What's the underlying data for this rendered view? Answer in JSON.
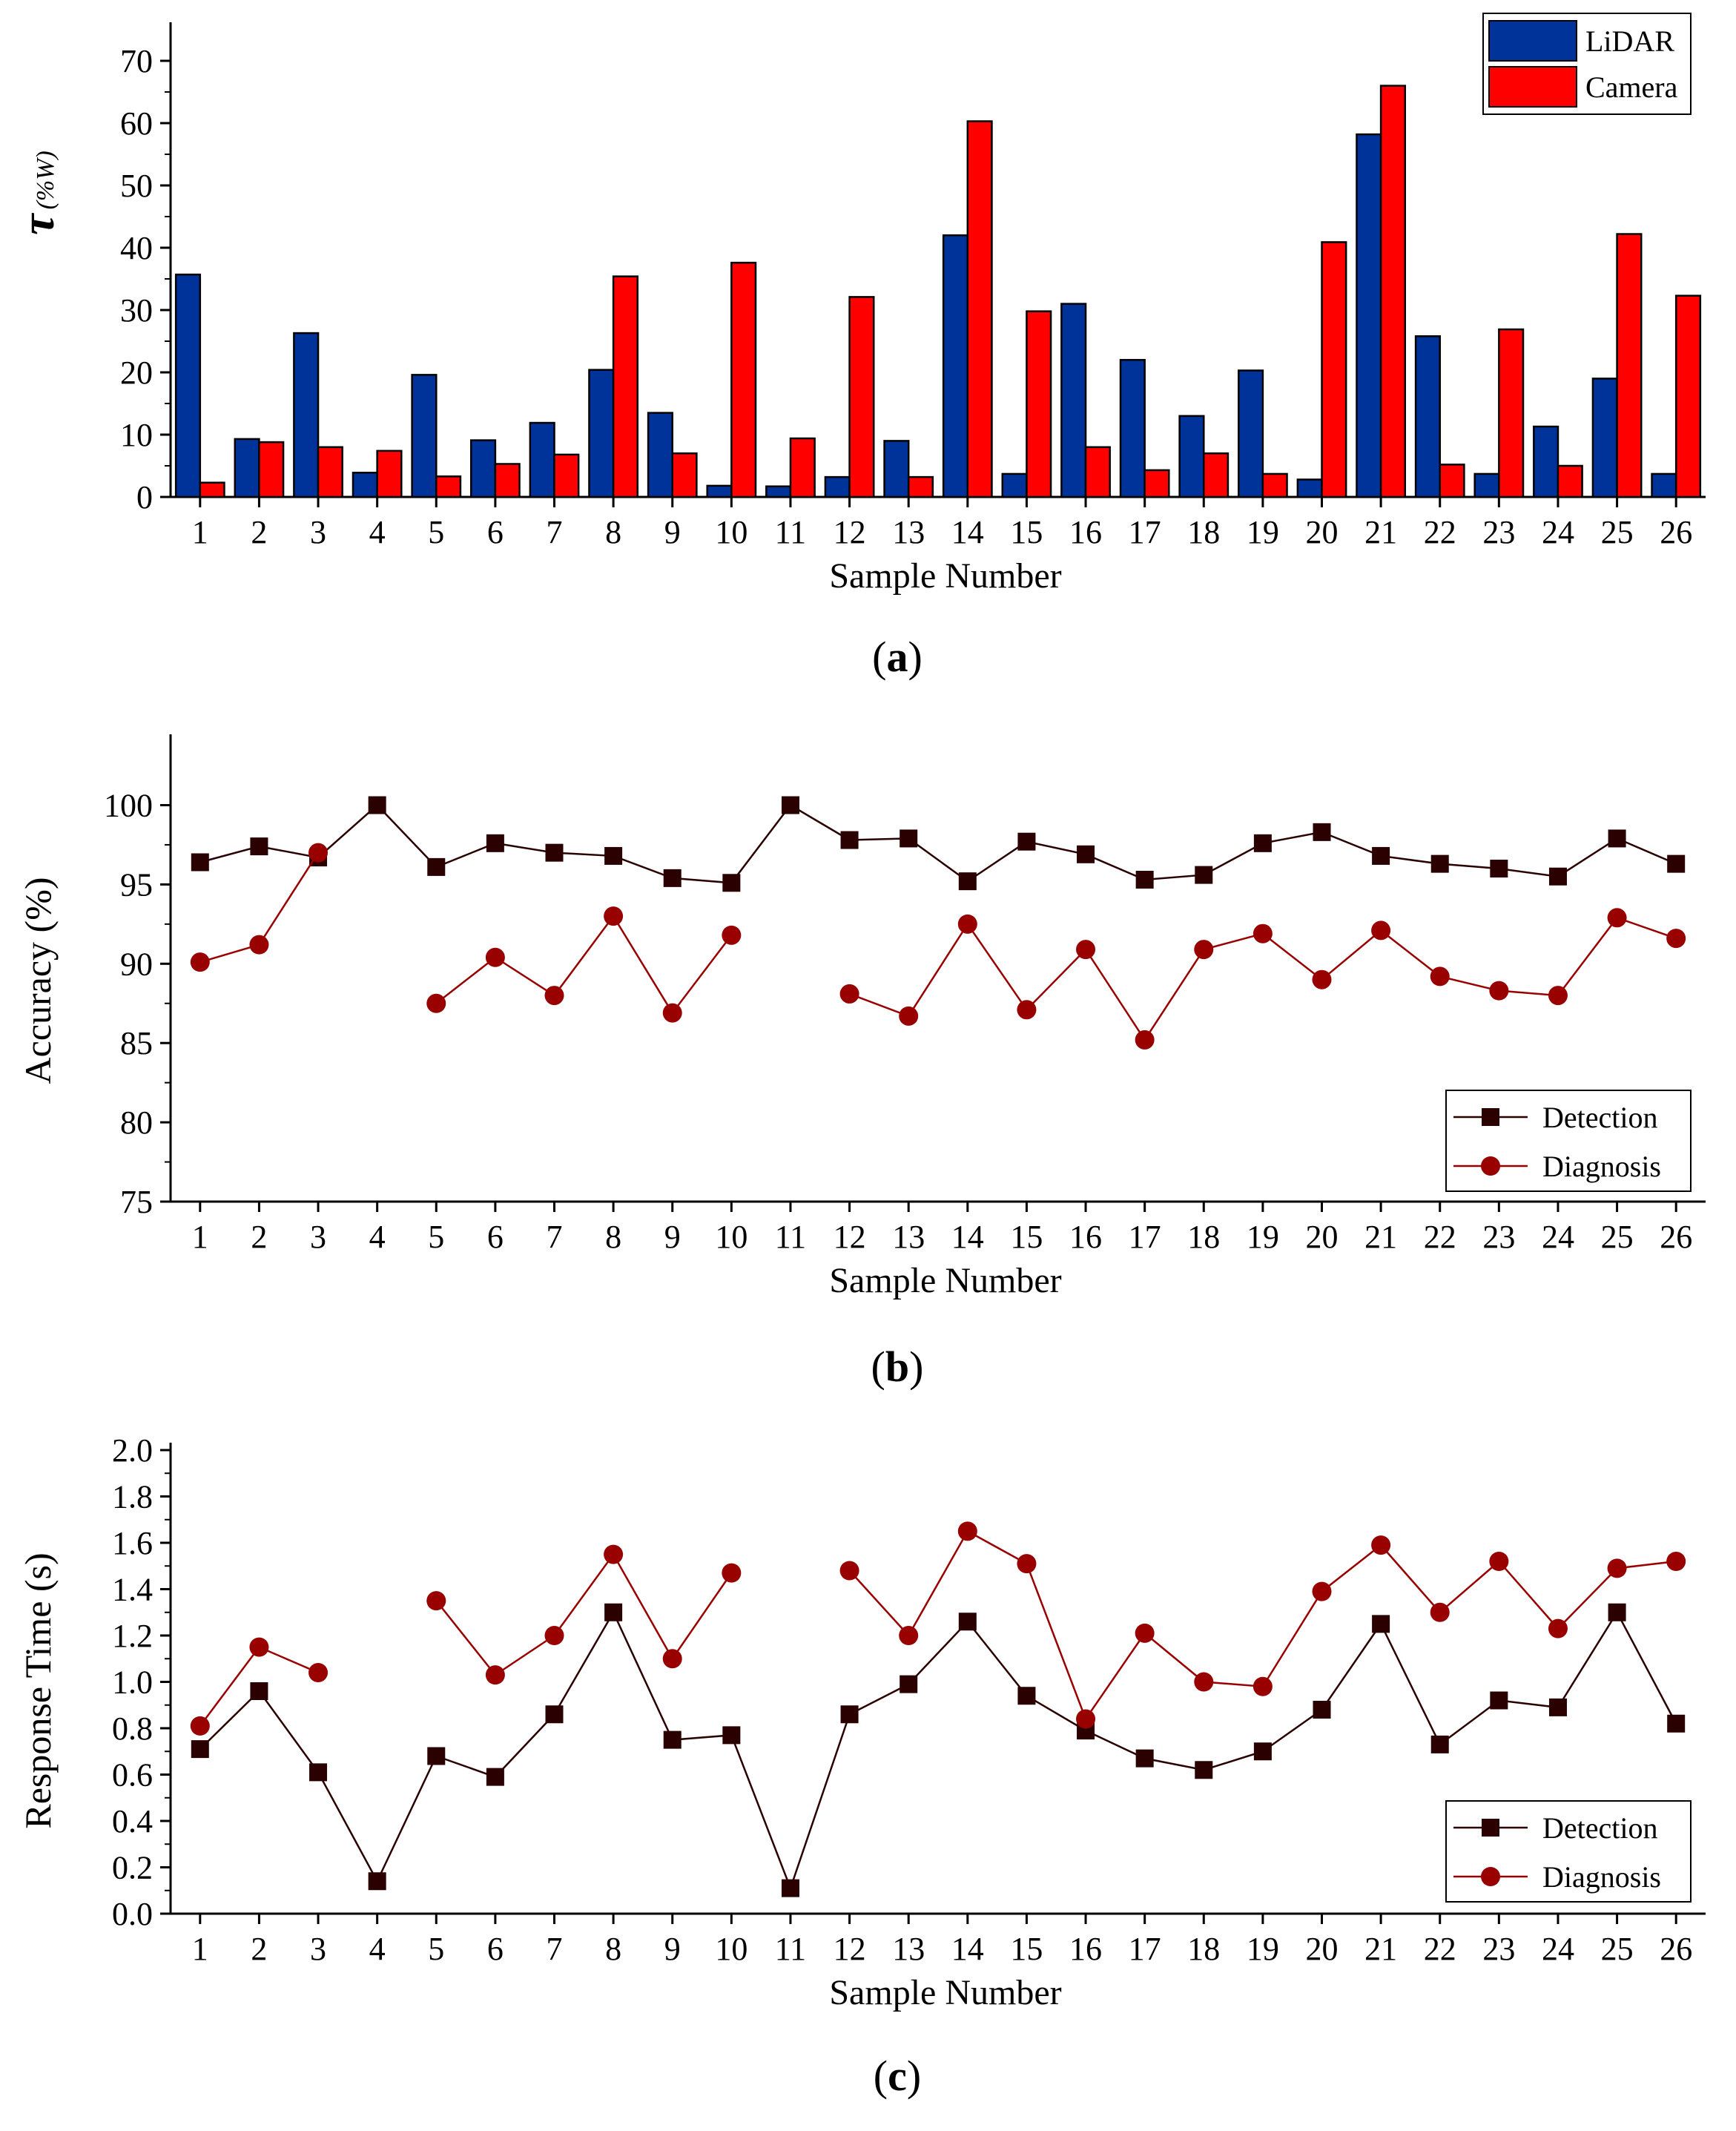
{
  "colors": {
    "lidar": "#003399",
    "camera": "#ff0000",
    "detection": "#2a0000",
    "diagnosis": "#990000",
    "axis": "#000000"
  },
  "chart_data": [
    {
      "type": "bar",
      "panel_label": "(a)",
      "panel_letter": "a",
      "title": "",
      "xlabel": "Sample Number",
      "ylabel_symbol": "τ",
      "ylabel_unit": "(%W)",
      "ylim": [
        0,
        75
      ],
      "yticks": [
        0,
        10,
        20,
        30,
        40,
        50,
        60,
        70
      ],
      "legend_position": "top-right",
      "categories": [
        "1",
        "2",
        "3",
        "4",
        "5",
        "6",
        "7",
        "8",
        "9",
        "10",
        "11",
        "12",
        "13",
        "14",
        "15",
        "16",
        "17",
        "18",
        "19",
        "20",
        "21",
        "22",
        "23",
        "24",
        "25",
        "26"
      ],
      "series": [
        {
          "name": "LiDAR",
          "color": "#003399",
          "values": [
            35.7,
            9.3,
            26.3,
            3.9,
            19.6,
            9.1,
            11.9,
            20.4,
            13.5,
            1.8,
            1.7,
            3.2,
            9.0,
            42.0,
            3.7,
            31.0,
            22.0,
            13.0,
            20.3,
            2.8,
            58.2,
            25.8,
            3.7,
            11.3,
            19.0,
            3.7
          ]
        },
        {
          "name": "Camera",
          "color": "#ff0000",
          "values": [
            2.3,
            8.8,
            8.0,
            7.4,
            3.3,
            5.3,
            6.8,
            35.4,
            7.0,
            37.6,
            9.4,
            32.1,
            3.2,
            60.3,
            29.8,
            8.0,
            4.3,
            7.0,
            3.7,
            40.9,
            66.0,
            5.2,
            26.9,
            5.0,
            42.2,
            32.3
          ]
        }
      ]
    },
    {
      "type": "line",
      "panel_label": "(b)",
      "panel_letter": "b",
      "title": "",
      "xlabel": "Sample Number",
      "ylabel": "Accuracy (%)",
      "ylim": [
        75,
        104
      ],
      "yticks": [
        75,
        80,
        85,
        90,
        95,
        100
      ],
      "legend_position": "bottom-right",
      "x": [
        1,
        2,
        3,
        4,
        5,
        6,
        7,
        8,
        9,
        10,
        11,
        12,
        13,
        14,
        15,
        16,
        17,
        18,
        19,
        20,
        21,
        22,
        23,
        24,
        25,
        26
      ],
      "series": [
        {
          "name": "Detection",
          "marker": "square",
          "color": "#2a0000",
          "values": [
            96.4,
            97.4,
            96.7,
            100.0,
            96.1,
            97.6,
            97.0,
            96.8,
            95.4,
            95.1,
            100.0,
            97.8,
            97.9,
            95.2,
            97.7,
            96.9,
            95.3,
            95.6,
            97.6,
            98.3,
            96.8,
            96.3,
            96.0,
            95.5,
            97.9,
            96.3
          ]
        },
        {
          "name": "Diagnosis",
          "marker": "circle",
          "color": "#990000",
          "values": [
            90.1,
            91.2,
            97.0,
            null,
            87.5,
            90.4,
            88.0,
            93.0,
            86.9,
            91.8,
            null,
            88.1,
            86.7,
            92.5,
            87.1,
            90.9,
            85.2,
            90.9,
            91.9,
            89.0,
            92.1,
            89.2,
            88.3,
            88.0,
            92.9,
            91.6
          ]
        }
      ]
    },
    {
      "type": "line",
      "panel_label": "(c)",
      "panel_letter": "c",
      "title": "",
      "xlabel": "Sample Number",
      "ylabel": "Response Time (s)",
      "ylim": [
        0.0,
        2.0
      ],
      "yticks": [
        "0.0",
        "0.2",
        "0.4",
        "0.6",
        "0.8",
        "1.0",
        "1.2",
        "1.4",
        "1.6",
        "1.8",
        "2.0"
      ],
      "legend_position": "bottom-right",
      "x": [
        1,
        2,
        3,
        4,
        5,
        6,
        7,
        8,
        9,
        10,
        11,
        12,
        13,
        14,
        15,
        16,
        17,
        18,
        19,
        20,
        21,
        22,
        23,
        24,
        25,
        26
      ],
      "series": [
        {
          "name": "Detection",
          "marker": "square",
          "color": "#2a0000",
          "values": [
            0.71,
            0.96,
            0.61,
            0.14,
            0.68,
            0.59,
            0.86,
            1.3,
            0.75,
            0.77,
            0.11,
            0.86,
            0.99,
            1.26,
            0.94,
            0.79,
            0.67,
            0.62,
            0.7,
            0.88,
            1.25,
            0.73,
            0.92,
            0.89,
            1.3,
            0.82
          ]
        },
        {
          "name": "Diagnosis",
          "marker": "circle",
          "color": "#990000",
          "values": [
            0.81,
            1.15,
            1.04,
            null,
            1.35,
            1.03,
            1.2,
            1.55,
            1.1,
            1.47,
            null,
            1.48,
            1.2,
            1.65,
            1.51,
            0.84,
            1.21,
            1.0,
            0.98,
            1.39,
            1.59,
            1.3,
            1.52,
            1.23,
            1.49,
            1.52
          ]
        }
      ]
    }
  ]
}
